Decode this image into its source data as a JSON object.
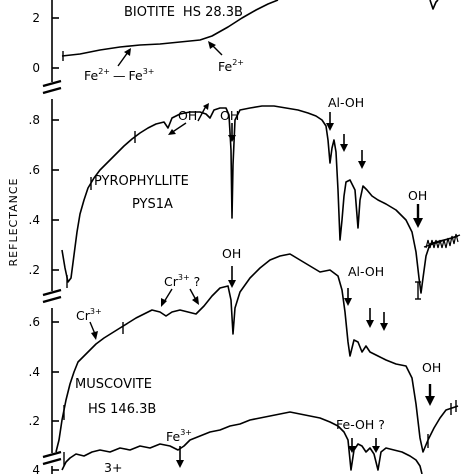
{
  "chart_data": {
    "type": "line",
    "ylabel": "REFLECTANCE",
    "xlabel": "",
    "title": "",
    "grid": false,
    "legend": "none",
    "panels": [
      {
        "name": "BIOTITE",
        "sample_id": "HS 28.3B",
        "y_ticks": [
          "2",
          "0"
        ],
        "annotations": [
          "Fe2+ — Fe3+",
          "Fe2+"
        ]
      },
      {
        "name": "PYROPHYLLITE",
        "sample_id": "PYS1A",
        "y_ticks": [
          ".8",
          ".6",
          ".4",
          ".2"
        ],
        "annotations": [
          "OH",
          "OH",
          "Al-OH",
          "OH"
        ]
      },
      {
        "name": "MUSCOVITE",
        "sample_id": "HS 146.3B",
        "y_ticks": [
          ".6",
          ".4",
          ".2"
        ],
        "annotations": [
          "Cr3+",
          "Cr3+ ?",
          "OH",
          "Al-OH",
          "OH"
        ]
      },
      {
        "name": "",
        "sample_id": "",
        "y_ticks": [
          "4"
        ],
        "annotations": [
          "Fe3+",
          "Fe-OH ?",
          "3+"
        ]
      }
    ]
  },
  "labels": {
    "biotite_name": "BIOTITE",
    "biotite_id": "HS 28.3B",
    "pyro_name": "PYROPHYLLITE",
    "pyro_id": "PYS1A",
    "musc_name": "MUSCOVITE",
    "musc_id": "HS 146.3B",
    "ann_fe2_fe3": "Fe",
    "ann_fe2_sup": "2+",
    "ann_fe3_sup": "3+",
    "ann_fe_dash": "—",
    "ann_fe2b": "Fe",
    "ann_fe2b_sup": "2+",
    "ann_oh1": "OH",
    "ann_oh2": "OH",
    "ann_aloh1": "Al-OH",
    "ann_oh3": "OH",
    "ann_cr1": "Cr",
    "ann_cr1_sup": "3+",
    "ann_cr2": "Cr",
    "ann_cr2_sup": "3+",
    "ann_cr2_q": "?",
    "ann_oh4": "OH",
    "ann_aloh2": "Al-OH",
    "ann_oh5": "OH",
    "ann_fe3": "Fe",
    "ann_feoh": "Fe-OH ?",
    "ann_bottom_sup": "3+",
    "tick_top_2": "2",
    "tick_top_0": "0",
    "tick_p8": ".8",
    "tick_p6": ".6",
    "tick_p4": ".4",
    "tick_p2": ".2",
    "tick_m6": ".6",
    "tick_m4": ".4",
    "tick_m2": ".2",
    "tick_b4": "4"
  }
}
